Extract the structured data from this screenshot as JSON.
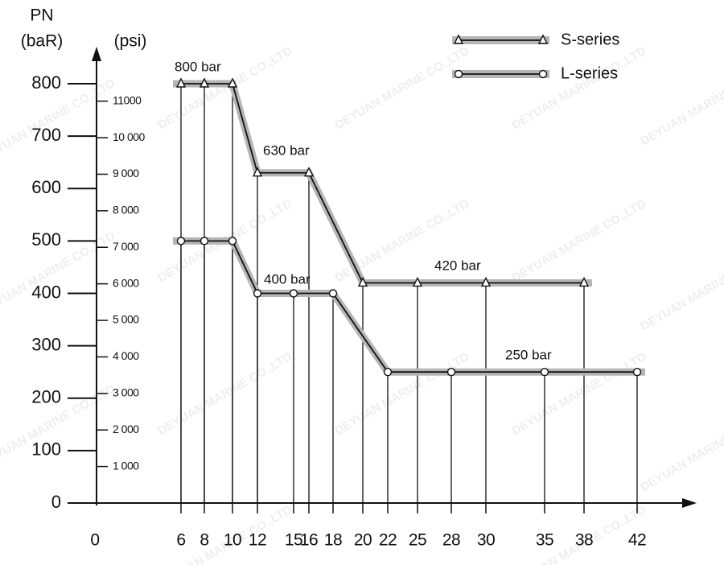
{
  "chart_data": {
    "type": "line",
    "ylabel": "PN",
    "ylabel_unit": "(baR)",
    "y2label": "(psi)",
    "xticks": [
      0,
      6,
      8,
      10,
      12,
      15,
      16,
      18,
      20,
      22,
      25,
      28,
      30,
      35,
      38,
      42
    ],
    "ylim": [
      0,
      800
    ],
    "yticks": [
      0,
      100,
      200,
      300,
      400,
      500,
      600,
      700,
      800
    ],
    "y2lim": [
      0,
      11500
    ],
    "y2ticks": [
      {
        "value": 1000,
        "label": "1 000"
      },
      {
        "value": 2000,
        "label": "2 000"
      },
      {
        "value": 3000,
        "label": "3 000"
      },
      {
        "value": 4000,
        "label": "4 000"
      },
      {
        "value": 5000,
        "label": "5 000"
      },
      {
        "value": 6000,
        "label": "6 000"
      },
      {
        "value": 7000,
        "label": "7 000"
      },
      {
        "value": 8000,
        "label": "8 000"
      },
      {
        "value": 9000,
        "label": "9 000"
      },
      {
        "value": 10000,
        "label": "10 000"
      },
      11000
    ],
    "series": [
      {
        "name": "S-series",
        "marker": "triangle",
        "color": "#111111",
        "band_color": "#b5b5b5",
        "x": [
          6,
          8,
          10,
          12,
          16,
          20,
          25,
          30,
          38
        ],
        "values": [
          800,
          800,
          800,
          630,
          630,
          420,
          420,
          420,
          420
        ]
      },
      {
        "name": "L-series",
        "marker": "circle",
        "color": "#111111",
        "band_color": "#b5b5b5",
        "x": [
          6,
          8,
          10,
          12,
          15,
          18,
          22,
          28,
          35,
          42
        ],
        "values": [
          500,
          500,
          500,
          400,
          400,
          400,
          250,
          250,
          250,
          250
        ]
      }
    ],
    "annotations": [
      "800 bar",
      "630 bar",
      "420 bar",
      "400 bar",
      "250 bar"
    ],
    "watermark": "DEYUAN MARINE CO.,LTD",
    "legend": "upper right"
  }
}
